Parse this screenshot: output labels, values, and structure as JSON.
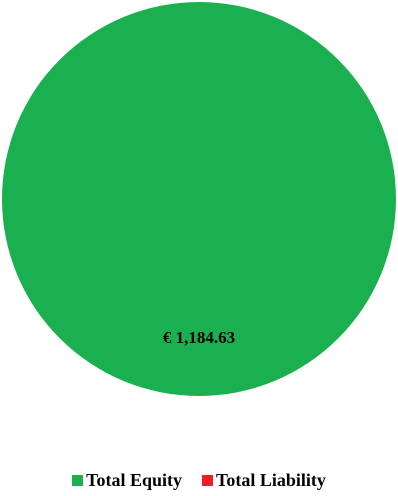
{
  "chart_data": {
    "type": "pie",
    "categories": [
      "Total Equity",
      "Total Liability"
    ],
    "values": [
      1184.63,
      0
    ],
    "colors": [
      "#1bb04f",
      "#ee1c25"
    ],
    "data_labels": [
      "€ 1,184.63",
      ""
    ],
    "title": "",
    "legend_position": "bottom"
  }
}
